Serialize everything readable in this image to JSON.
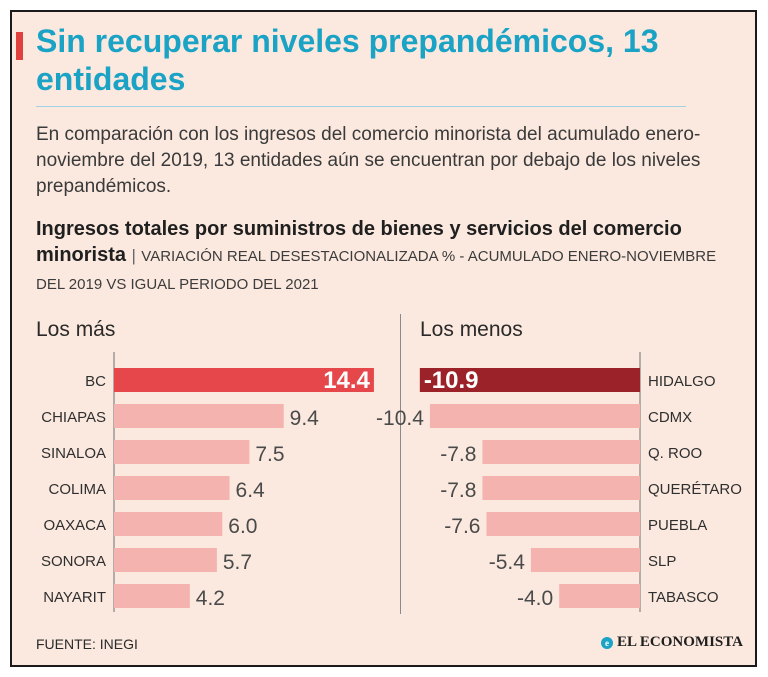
{
  "header": {
    "title": "Sin recuperar niveles prepandémicos, 13 entidades",
    "lede": "En comparación con los ingresos del comercio minorista del acumulado enero-noviembre del 2019, 13 entidades aún se encuentran por debajo de los niveles prepandémicos."
  },
  "chart_title": {
    "main": "Ingresos totales por suministros de bienes y servicios del comercio minorista",
    "separator": "|",
    "subtitle": "VARIACIÓN REAL DESESTACIONALIZADA % - ACUMULADO ENERO-NOVIEMBRE DEL 2019 VS IGUAL PERIODO DEL 2021"
  },
  "footer": {
    "source": "FUENTE: INEGI",
    "brand": "EL ECONOMISTA",
    "brand_logo": "e"
  },
  "colors": {
    "highlight_pos": "#e5474b",
    "highlight_neg": "#9b2228",
    "bar": "#f4b3ae",
    "label": "#2f2f2f"
  },
  "chart_data": [
    {
      "type": "bar",
      "orientation": "horizontal",
      "title": "Los más",
      "categories": [
        "BC",
        "CHIAPAS",
        "SINALOA",
        "COLIMA",
        "OAXACA",
        "SONORA",
        "NAYARIT"
      ],
      "values": [
        14.4,
        9.4,
        7.5,
        6.4,
        6.0,
        5.7,
        4.2
      ],
      "value_labels": [
        "14.4",
        "9.4",
        "7.5",
        "6.4",
        "6.0",
        "5.7",
        "4.2"
      ],
      "highlight_index": 0
    },
    {
      "type": "bar",
      "orientation": "horizontal",
      "title": "Los menos",
      "categories": [
        "HIDALGO",
        "CDMX",
        "Q. ROO",
        "QUERÉTARO",
        "PUEBLA",
        "SLP",
        "TABASCO"
      ],
      "values": [
        -10.9,
        -10.4,
        -7.8,
        -7.8,
        -7.6,
        -5.4,
        -4.0
      ],
      "value_labels": [
        "-10.9",
        "-10.4",
        "-7.8",
        "-7.8",
        "-7.6",
        "-5.4",
        "-4.0"
      ],
      "highlight_index": 0
    }
  ]
}
